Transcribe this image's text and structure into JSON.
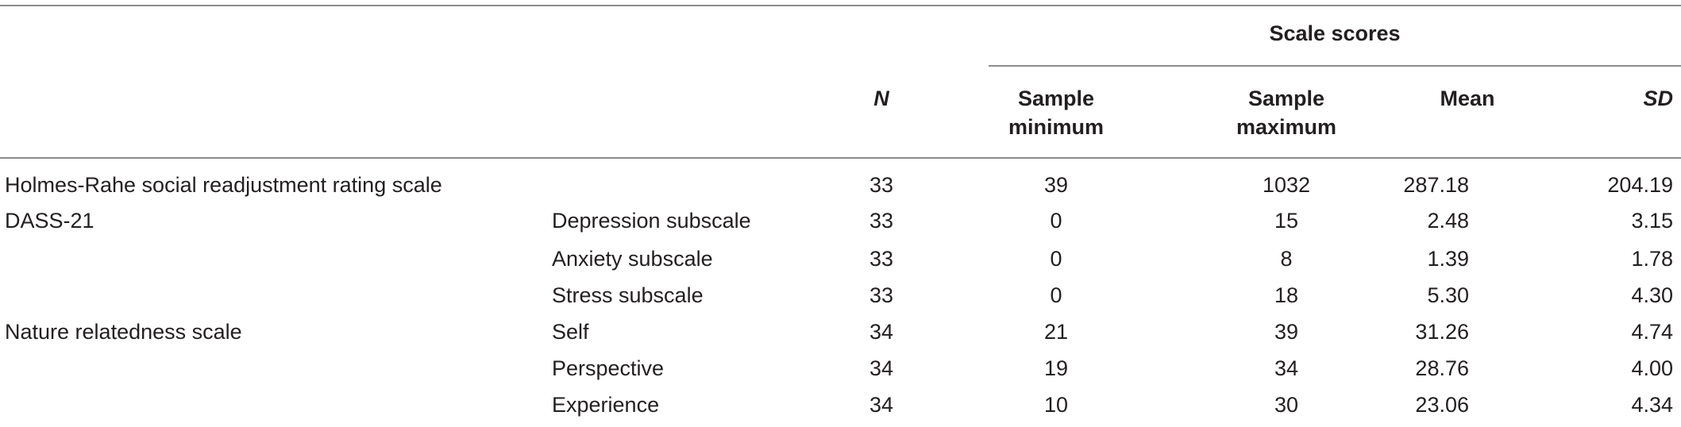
{
  "table": {
    "group_header": "Scale scores",
    "headers": {
      "n": "N",
      "sample_min": "Sample minimum",
      "sample_max": "Sample maximum",
      "mean": "Mean",
      "sd": "SD"
    },
    "rows": [
      {
        "scale": "Holmes-Rahe social readjustment rating scale",
        "subscale": "",
        "n": "33",
        "min": "39",
        "max": "1032",
        "mean": "287.18",
        "sd": "204.19"
      },
      {
        "scale": "DASS-21",
        "subscale": "Depression subscale",
        "n": "33",
        "min": "0",
        "max": "15",
        "mean": "2.48",
        "sd": "3.15"
      },
      {
        "scale": "",
        "subscale": "Anxiety subscale",
        "n": "33",
        "min": "0",
        "max": "8",
        "mean": "1.39",
        "sd": "1.78"
      },
      {
        "scale": "",
        "subscale": "Stress subscale",
        "n": "33",
        "min": "0",
        "max": "18",
        "mean": "5.30",
        "sd": "4.30"
      },
      {
        "scale": "Nature relatedness scale",
        "subscale": "Self",
        "n": "34",
        "min": "21",
        "max": "39",
        "mean": "31.26",
        "sd": "4.74"
      },
      {
        "scale": "",
        "subscale": "Perspective",
        "n": "34",
        "min": "19",
        "max": "34",
        "mean": "28.76",
        "sd": "4.00"
      },
      {
        "scale": "",
        "subscale": "Experience",
        "n": "34",
        "min": "10",
        "max": "30",
        "mean": "23.06",
        "sd": "4.34"
      }
    ]
  }
}
